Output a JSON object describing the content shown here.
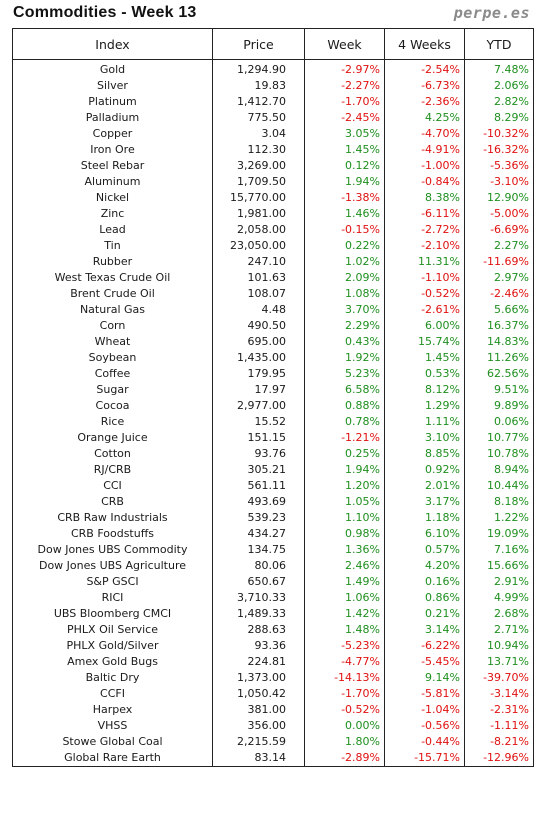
{
  "header": {
    "title": "Commodities - Week 13",
    "brand": "perpe.es"
  },
  "table": {
    "columns": [
      "Index",
      "Price",
      "Week",
      "4 Weeks",
      "YTD"
    ],
    "rows": [
      [
        "Gold",
        "1,294.90",
        "-2.97%",
        "-2.54%",
        "7.48%"
      ],
      [
        "Silver",
        "19.83",
        "-2.27%",
        "-6.73%",
        "2.06%"
      ],
      [
        "Platinum",
        "1,412.70",
        "-1.70%",
        "-2.36%",
        "2.82%"
      ],
      [
        "Palladium",
        "775.50",
        "-2.45%",
        "4.25%",
        "8.29%"
      ],
      [
        "Copper",
        "3.04",
        "3.05%",
        "-4.70%",
        "-10.32%"
      ],
      [
        "Iron Ore",
        "112.30",
        "1.45%",
        "-4.91%",
        "-16.32%"
      ],
      [
        "Steel Rebar",
        "3,269.00",
        "0.12%",
        "-1.00%",
        "-5.36%"
      ],
      [
        "Aluminum",
        "1,709.50",
        "1.94%",
        "-0.84%",
        "-3.10%"
      ],
      [
        "Nickel",
        "15,770.00",
        "-1.38%",
        "8.38%",
        "12.90%"
      ],
      [
        "Zinc",
        "1,981.00",
        "1.46%",
        "-6.11%",
        "-5.00%"
      ],
      [
        "Lead",
        "2,058.00",
        "-0.15%",
        "-2.72%",
        "-6.69%"
      ],
      [
        "Tin",
        "23,050.00",
        "0.22%",
        "-2.10%",
        "2.27%"
      ],
      [
        "Rubber",
        "247.10",
        "1.02%",
        "11.31%",
        "-11.69%"
      ],
      [
        "West Texas Crude Oil",
        "101.63",
        "2.09%",
        "-1.10%",
        "2.97%"
      ],
      [
        "Brent Crude Oil",
        "108.07",
        "1.08%",
        "-0.52%",
        "-2.46%"
      ],
      [
        "Natural Gas",
        "4.48",
        "3.70%",
        "-2.61%",
        "5.66%"
      ],
      [
        "Corn",
        "490.50",
        "2.29%",
        "6.00%",
        "16.37%"
      ],
      [
        "Wheat",
        "695.00",
        "0.43%",
        "15.74%",
        "14.83%"
      ],
      [
        "Soybean",
        "1,435.00",
        "1.92%",
        "1.45%",
        "11.26%"
      ],
      [
        "Coffee",
        "179.95",
        "5.23%",
        "0.53%",
        "62.56%"
      ],
      [
        "Sugar",
        "17.97",
        "6.58%",
        "8.12%",
        "9.51%"
      ],
      [
        "Cocoa",
        "2,977.00",
        "0.88%",
        "1.29%",
        "9.89%"
      ],
      [
        "Rice",
        "15.52",
        "0.78%",
        "1.11%",
        "0.06%"
      ],
      [
        "Orange Juice",
        "151.15",
        "-1.21%",
        "3.10%",
        "10.77%"
      ],
      [
        "Cotton",
        "93.76",
        "0.25%",
        "8.85%",
        "10.78%"
      ],
      [
        "RJ/CRB",
        "305.21",
        "1.94%",
        "0.92%",
        "8.94%"
      ],
      [
        "CCI",
        "561.11",
        "1.20%",
        "2.01%",
        "10.44%"
      ],
      [
        "CRB",
        "493.69",
        "1.05%",
        "3.17%",
        "8.18%"
      ],
      [
        "CRB Raw Industrials",
        "539.23",
        "1.10%",
        "1.18%",
        "1.22%"
      ],
      [
        "CRB Foodstuffs",
        "434.27",
        "0.98%",
        "6.10%",
        "19.09%"
      ],
      [
        "Dow Jones UBS Commodity",
        "134.75",
        "1.36%",
        "0.57%",
        "7.16%"
      ],
      [
        "Dow Jones UBS Agriculture",
        "80.06",
        "2.46%",
        "4.20%",
        "15.66%"
      ],
      [
        "S&P GSCI",
        "650.67",
        "1.49%",
        "0.16%",
        "2.91%"
      ],
      [
        "RICI",
        "3,710.33",
        "1.06%",
        "0.86%",
        "4.99%"
      ],
      [
        "UBS Bloomberg CMCI",
        "1,489.33",
        "1.42%",
        "0.21%",
        "2.68%"
      ],
      [
        "PHLX Oil Service",
        "288.63",
        "1.48%",
        "3.14%",
        "2.71%"
      ],
      [
        "PHLX Gold/Silver",
        "93.36",
        "-5.23%",
        "-6.22%",
        "10.94%"
      ],
      [
        "Amex Gold Bugs",
        "224.81",
        "-4.77%",
        "-5.45%",
        "13.71%"
      ],
      [
        "Baltic Dry",
        "1,373.00",
        "-14.13%",
        "9.14%",
        "-39.70%"
      ],
      [
        "CCFI",
        "1,050.42",
        "-1.70%",
        "-5.81%",
        "-3.14%"
      ],
      [
        "Harpex",
        "381.00",
        "-0.52%",
        "-1.04%",
        "-2.31%"
      ],
      [
        "VHSS",
        "356.00",
        "0.00%",
        "-0.56%",
        "-1.11%"
      ],
      [
        "Stowe Global Coal",
        "2,215.59",
        "1.80%",
        "-0.44%",
        "-8.21%"
      ],
      [
        "Global Rare Earth",
        "83.14",
        "-2.89%",
        "-15.71%",
        "-12.96%"
      ]
    ]
  },
  "colors": {
    "positive": "#1f8f1f",
    "negative": "#e01010",
    "border": "#222222",
    "brand": "#8a8a8a"
  }
}
